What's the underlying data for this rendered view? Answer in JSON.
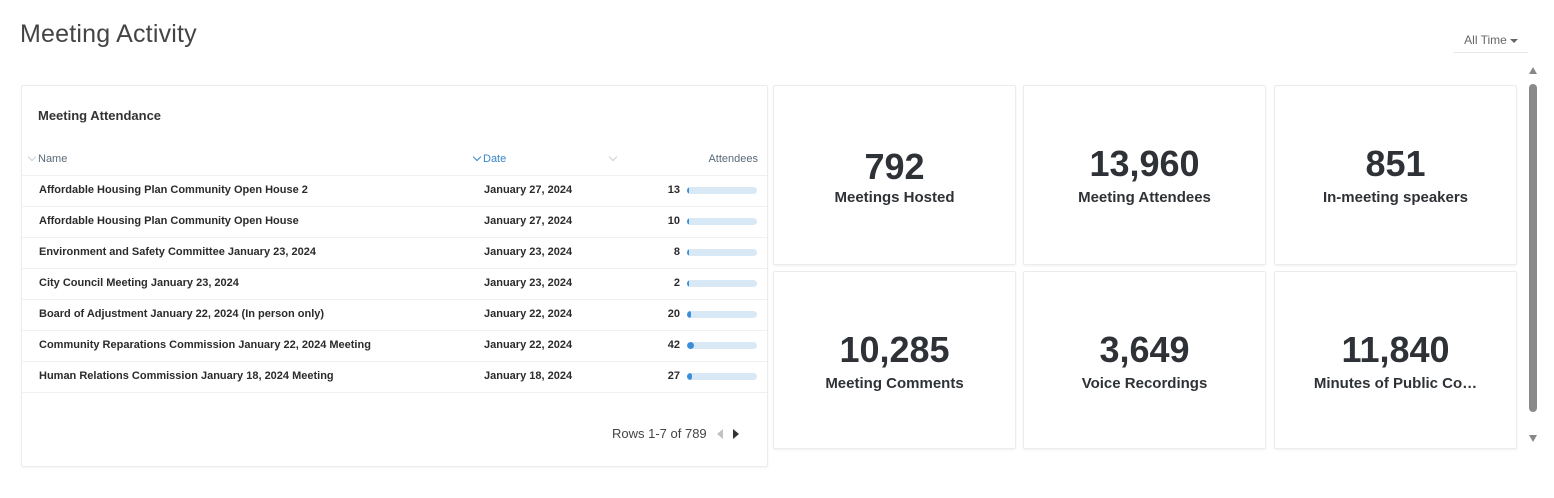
{
  "page": {
    "title": "Meeting Activity",
    "time_filter": "All Time"
  },
  "attendance": {
    "title": "Meeting Attendance",
    "columns": {
      "name": "Name",
      "date": "Date",
      "attendees": "Attendees"
    },
    "max_attendees": 789,
    "rows": [
      {
        "name": "Affordable Housing Plan Community Open House 2",
        "date": "January 27, 2024",
        "attendees": "13",
        "bar_fraction": 0.03
      },
      {
        "name": "Affordable Housing Plan Community Open House",
        "date": "January 27, 2024",
        "attendees": "10",
        "bar_fraction": 0.025
      },
      {
        "name": "Environment and Safety Committee January 23, 2024",
        "date": "January 23, 2024",
        "attendees": "8",
        "bar_fraction": 0.02
      },
      {
        "name": "City Council Meeting January 23, 2024",
        "date": "January 23, 2024",
        "attendees": "2",
        "bar_fraction": 0.01
      },
      {
        "name": "Board of Adjustment January 22, 2024 (In person only)",
        "date": "January 22, 2024",
        "attendees": "20",
        "bar_fraction": 0.05
      },
      {
        "name": "Community Reparations Commission January 22, 2024 Meeting",
        "date": "January 22, 2024",
        "attendees": "42",
        "bar_fraction": 0.1
      },
      {
        "name": "Human Relations Commission January 18, 2024 Meeting",
        "date": "January 18, 2024",
        "attendees": "27",
        "bar_fraction": 0.065
      }
    ],
    "pager": {
      "label": "Rows 1-7 of 789"
    }
  },
  "stats": [
    {
      "value": "792",
      "label": "Meetings Hosted"
    },
    {
      "value": "13,960",
      "label": "Meeting Attendees"
    },
    {
      "value": "851",
      "label": "In-meeting speakers"
    },
    {
      "value": "10,285",
      "label": "Meeting Comments"
    },
    {
      "value": "3,649",
      "label": "Voice Recordings"
    },
    {
      "value": "11,840",
      "label": "Minutes of Public Co…"
    }
  ],
  "colors": {
    "accent": "#3a86c8",
    "bar_fill": "#3b8fd9",
    "bar_track": "#d9e8f5"
  }
}
